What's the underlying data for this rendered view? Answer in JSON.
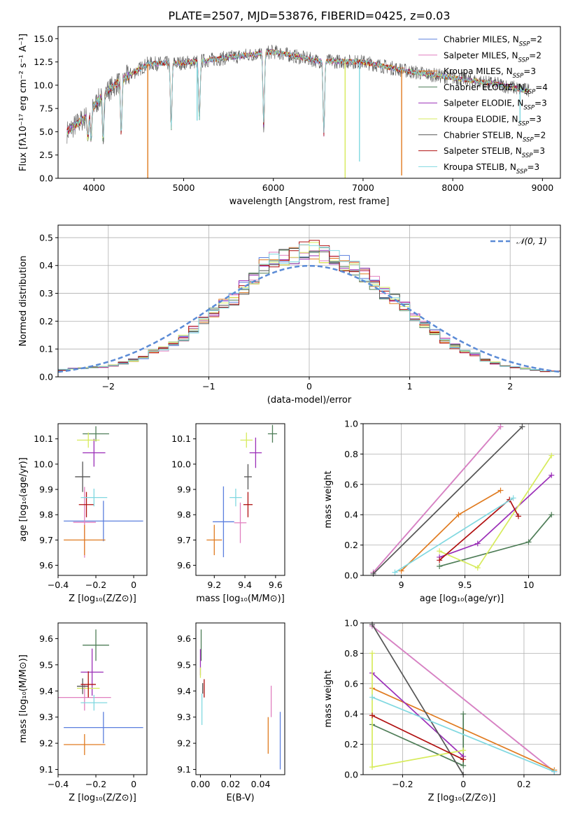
{
  "figure": {
    "title": "PLATE=2507, MJD=53876, FIBERID=0425, z=0.03"
  },
  "series_colors": [
    "#5b7fde",
    "#e07fbf",
    "#e07b20",
    "#4e7d57",
    "#9b2fb8",
    "#d7eb5c",
    "#555555",
    "#b01010",
    "#80d8e0"
  ],
  "chart_data": [
    {
      "id": "spectrum",
      "type": "line",
      "title": "PLATE=2507, MJD=53876, FIBERID=0425, z=0.03",
      "xlabel": "wavelength [Angstrom, rest frame]",
      "ylabel": "Flux [fλ10⁻¹⁷ erg cm⁻² s⁻¹ A⁻¹]",
      "xlim": [
        3600,
        9200
      ],
      "ylim": [
        0,
        16.3
      ],
      "xticks": [
        4000,
        5000,
        6000,
        7000,
        8000,
        9000
      ],
      "yticks": [
        0.0,
        2.5,
        5.0,
        7.5,
        10.0,
        12.5,
        15.0
      ],
      "grid": false,
      "legend_position": "upper-right",
      "series": [
        {
          "name": "Chabrier MILES, N_SSP=2",
          "base": "Chabrier MILES, N",
          "sub": "SSP",
          "tail": "=2"
        },
        {
          "name": "Salpeter MILES, N_SSP=2",
          "base": "Salpeter MILES, N",
          "sub": "SSP",
          "tail": "=2"
        },
        {
          "name": "Kroupa MILES, N_SSP=3",
          "base": "Kroupa MILES, N",
          "sub": "SSP",
          "tail": "=3"
        },
        {
          "name": "Chabrier ELODIE, N_SSP=4",
          "base": "Chabrier ELODIE, N",
          "sub": "SSP",
          "tail": "=4"
        },
        {
          "name": "Salpeter ELODIE, N_SSP=3",
          "base": "Salpeter ELODIE, N",
          "sub": "SSP",
          "tail": "=3"
        },
        {
          "name": "Kroupa ELODIE, N_SSP=3",
          "base": "Kroupa ELODIE, N",
          "sub": "SSP",
          "tail": "=3"
        },
        {
          "name": "Chabrier STELIB, N_SSP=2",
          "base": "Chabrier STELIB, N",
          "sub": "SSP",
          "tail": "=2"
        },
        {
          "name": "Salpeter STELIB, N_SSP=3",
          "base": "Salpeter STELIB, N",
          "sub": "SSP",
          "tail": "=3"
        },
        {
          "name": "Kroupa STELIB, N_SSP=3",
          "base": "Kroupa STELIB, N",
          "sub": "SSP",
          "tail": "=3"
        }
      ],
      "continuum": [
        [
          3700,
          5.0
        ],
        [
          3900,
          6.5
        ],
        [
          4100,
          9.0
        ],
        [
          4300,
          10.5
        ],
        [
          4600,
          12.3
        ],
        [
          5000,
          12.4
        ],
        [
          5200,
          12.6
        ],
        [
          5600,
          13.1
        ],
        [
          6000,
          13.6
        ],
        [
          6500,
          12.6
        ],
        [
          7000,
          12.5
        ],
        [
          7500,
          11.5
        ],
        [
          8000,
          10.8
        ],
        [
          8500,
          10.1
        ],
        [
          8800,
          9.5
        ]
      ],
      "absorption_features": [
        [
          3933,
          3.2
        ],
        [
          3968,
          2.9
        ],
        [
          4102,
          2.0
        ],
        [
          4304,
          2.3
        ],
        [
          4861,
          2.4
        ],
        [
          5175,
          3.5
        ],
        [
          5893,
          2.1
        ],
        [
          6563,
          1.4
        ]
      ],
      "spikes": [
        [
          4600,
          0.0
        ],
        [
          5150,
          6.2
        ],
        [
          6800,
          0.0
        ],
        [
          6960,
          1.8
        ],
        [
          7430,
          0.3
        ],
        [
          8750,
          6.0
        ]
      ]
    },
    {
      "id": "residuals",
      "type": "bar",
      "xlabel": "(data-model)/error",
      "ylabel": "Normed distribution",
      "xlim": [
        -2.5,
        2.5
      ],
      "ylim": [
        0,
        0.545
      ],
      "xticks": [
        -2,
        -1,
        0,
        1,
        2
      ],
      "yticks": [
        0.0,
        0.1,
        0.2,
        0.3,
        0.4,
        0.5
      ],
      "grid": true,
      "legend_position": "upper-right",
      "legend_label": "𝒩(0, 1)",
      "bin_edges": [
        -2.5,
        -2.4,
        -2.3,
        -2.2,
        -2.1,
        -2.0,
        -1.9,
        -1.8,
        -1.7,
        -1.6,
        -1.5,
        -1.4,
        -1.3,
        -1.2,
        -1.1,
        -1.0,
        -0.9,
        -0.8,
        -0.7,
        -0.6,
        -0.5,
        -0.4,
        -0.3,
        -0.2,
        -0.1,
        0.0,
        0.1,
        0.2,
        0.3,
        0.4,
        0.5,
        0.6,
        0.7,
        0.8,
        0.9,
        1.0,
        1.1,
        1.2,
        1.3,
        1.4,
        1.5,
        1.6,
        1.7,
        1.8,
        1.9,
        2.0,
        2.1,
        2.2,
        2.3,
        2.4,
        2.5
      ],
      "histogram_base": [
        0.025,
        0.03,
        0.03,
        0.035,
        0.035,
        0.04,
        0.05,
        0.06,
        0.07,
        0.09,
        0.1,
        0.12,
        0.14,
        0.17,
        0.2,
        0.23,
        0.26,
        0.28,
        0.32,
        0.36,
        0.4,
        0.42,
        0.43,
        0.44,
        0.45,
        0.46,
        0.44,
        0.43,
        0.41,
        0.39,
        0.37,
        0.34,
        0.3,
        0.28,
        0.25,
        0.22,
        0.19,
        0.16,
        0.13,
        0.11,
        0.09,
        0.08,
        0.06,
        0.05,
        0.04,
        0.035,
        0.03,
        0.025,
        0.02,
        0.02
      ],
      "normal_curve": {
        "mu": 0,
        "sigma": 1
      }
    },
    {
      "id": "age_vs_Z",
      "type": "scatter",
      "xlabel": "Z [log₁₀(Z/Z⊙)]",
      "ylabel": "age  [log₁₀(age/yr)]",
      "xlim": [
        -0.4,
        0.07
      ],
      "ylim": [
        9.56,
        10.16
      ],
      "xticks": [
        -0.4,
        -0.2,
        0.0
      ],
      "yticks": [
        9.6,
        9.7,
        9.8,
        9.9,
        10.0,
        10.1
      ],
      "grid": false,
      "points": [
        {
          "x": -0.16,
          "y": 9.775,
          "xerr": 0.21,
          "yerr": 0.08
        },
        {
          "x": -0.26,
          "y": 9.77,
          "xerr": 0.06,
          "yerr": 0.14
        },
        {
          "x": -0.26,
          "y": 9.7,
          "xerr": 0.11,
          "yerr": 0.06
        },
        {
          "x": -0.2,
          "y": 10.12,
          "xerr": 0.07,
          "yerr": 0.03
        },
        {
          "x": -0.21,
          "y": 10.045,
          "xerr": 0.06,
          "yerr": 0.055
        },
        {
          "x": -0.24,
          "y": 10.095,
          "xerr": 0.06,
          "yerr": 0.03
        },
        {
          "x": -0.27,
          "y": 9.95,
          "xerr": 0.04,
          "yerr": 0.06
        },
        {
          "x": -0.25,
          "y": 9.84,
          "xerr": 0.04,
          "yerr": 0.05
        },
        {
          "x": -0.21,
          "y": 9.868,
          "xerr": 0.07,
          "yerr": 0.035
        }
      ]
    },
    {
      "id": "age_vs_mass",
      "type": "scatter",
      "xlabel": "mass [log₁₀(M/M⊙)]",
      "ylabel": "",
      "xlim": [
        9.08,
        9.66
      ],
      "ylim": [
        9.56,
        10.16
      ],
      "xticks": [
        9.2,
        9.4,
        9.6
      ],
      "yticks": [
        9.6,
        9.7,
        9.8,
        9.9,
        10.0,
        10.1
      ],
      "grid": false,
      "points": [
        {
          "x": 9.26,
          "y": 9.772,
          "xerr": 0.07,
          "yerr": 0.14
        },
        {
          "x": 9.37,
          "y": 9.768,
          "xerr": 0.04,
          "yerr": 0.08
        },
        {
          "x": 9.2,
          "y": 9.7,
          "xerr": 0.05,
          "yerr": 0.06
        },
        {
          "x": 9.58,
          "y": 10.12,
          "xerr": 0.03,
          "yerr": 0.035
        },
        {
          "x": 9.47,
          "y": 10.045,
          "xerr": 0.04,
          "yerr": 0.06
        },
        {
          "x": 9.41,
          "y": 10.095,
          "xerr": 0.04,
          "yerr": 0.03
        },
        {
          "x": 9.42,
          "y": 9.95,
          "xerr": 0.025,
          "yerr": 0.05
        },
        {
          "x": 9.42,
          "y": 9.84,
          "xerr": 0.03,
          "yerr": 0.05
        },
        {
          "x": 9.34,
          "y": 9.868,
          "xerr": 0.04,
          "yerr": 0.035
        }
      ]
    },
    {
      "id": "weight_vs_age",
      "type": "line",
      "xlabel": "age  [log₁₀(age/yr)]",
      "ylabel": "mass weight",
      "xlim": [
        8.7,
        10.25
      ],
      "ylim": [
        0,
        1.0
      ],
      "xticks": [
        9.0,
        9.5,
        10.0
      ],
      "yticks": [
        0.0,
        0.2,
        0.4,
        0.6,
        0.8,
        1.0
      ],
      "grid": true,
      "series": [
        {
          "points": [
            [
              8.78,
              0.02
            ],
            [
              9.78,
              0.98
            ]
          ]
        },
        {
          "points": [
            [
              8.78,
              0.02
            ],
            [
              9.78,
              0.98
            ]
          ]
        },
        {
          "points": [
            [
              9.0,
              0.03
            ],
            [
              9.45,
              0.4
            ],
            [
              9.78,
              0.56
            ]
          ]
        },
        {
          "points": [
            [
              9.3,
              0.06
            ],
            [
              10.0,
              0.22
            ],
            [
              10.18,
              0.4
            ]
          ]
        },
        {
          "points": [
            [
              9.3,
              0.12
            ],
            [
              9.6,
              0.21
            ],
            [
              10.18,
              0.66
            ]
          ]
        },
        {
          "points": [
            [
              9.3,
              0.16
            ],
            [
              9.6,
              0.05
            ],
            [
              10.18,
              0.79
            ]
          ]
        },
        {
          "points": [
            [
              8.78,
              0.01
            ],
            [
              9.95,
              0.98
            ]
          ]
        },
        {
          "points": [
            [
              9.3,
              0.1
            ],
            [
              9.85,
              0.5
            ],
            [
              9.92,
              0.39
            ]
          ]
        },
        {
          "points": [
            [
              8.95,
              0.02
            ],
            [
              9.88,
              0.51
            ]
          ]
        }
      ]
    },
    {
      "id": "mass_vs_Z",
      "type": "scatter",
      "xlabel": "Z [log₁₀(Z/Z⊙)]",
      "ylabel": "mass [log₁₀(M/M⊙)]",
      "xlim": [
        -0.4,
        0.07
      ],
      "ylim": [
        9.08,
        9.66
      ],
      "xticks": [
        -0.4,
        -0.2,
        0.0
      ],
      "yticks": [
        9.1,
        9.2,
        9.3,
        9.4,
        9.5,
        9.6
      ],
      "grid": false,
      "points": [
        {
          "x": -0.16,
          "y": 9.26,
          "xerr": 0.21,
          "yerr": 0.06
        },
        {
          "x": -0.26,
          "y": 9.375,
          "xerr": 0.14,
          "yerr": 0.05
        },
        {
          "x": -0.26,
          "y": 9.195,
          "xerr": 0.11,
          "yerr": 0.04
        },
        {
          "x": -0.2,
          "y": 9.575,
          "xerr": 0.07,
          "yerr": 0.06
        },
        {
          "x": -0.22,
          "y": 9.472,
          "xerr": 0.06,
          "yerr": 0.09
        },
        {
          "x": -0.24,
          "y": 9.41,
          "xerr": 0.06,
          "yerr": 0.03
        },
        {
          "x": -0.27,
          "y": 9.418,
          "xerr": 0.03,
          "yerr": 0.03
        },
        {
          "x": -0.24,
          "y": 9.425,
          "xerr": 0.04,
          "yerr": 0.05
        },
        {
          "x": -0.21,
          "y": 9.355,
          "xerr": 0.07,
          "yerr": 0.03
        }
      ]
    },
    {
      "id": "mass_vs_ebv",
      "type": "scatter",
      "xlabel": "E(B-V)",
      "ylabel": "",
      "xlim": [
        -0.003,
        0.056
      ],
      "ylim": [
        9.08,
        9.66
      ],
      "xticks": [
        0.0,
        0.02,
        0.04
      ],
      "xticklabels": [
        "0.00",
        "0.02",
        "0.04"
      ],
      "yticks": [
        9.1,
        9.2,
        9.3,
        9.4,
        9.5,
        9.6
      ],
      "grid": false,
      "points": [
        {
          "x": 0.053,
          "y": 9.21,
          "xerr": 0.0,
          "yerr": 0.11
        },
        {
          "x": 0.047,
          "y": 9.36,
          "xerr": 0.0,
          "yerr": 0.06
        },
        {
          "x": 0.045,
          "y": 9.23,
          "xerr": 0.0,
          "yerr": 0.07
        },
        {
          "x": 0.0005,
          "y": 9.575,
          "xerr": 0.0,
          "yerr": 0.06
        },
        {
          "x": 0.0,
          "y": 9.51,
          "xerr": 0.0,
          "yerr": 0.05
        },
        {
          "x": 0.0,
          "y": 9.47,
          "xerr": 0.0,
          "yerr": 0.02
        },
        {
          "x": 0.0015,
          "y": 9.41,
          "xerr": 0.0,
          "yerr": 0.02
        },
        {
          "x": 0.0025,
          "y": 9.41,
          "xerr": 0.0,
          "yerr": 0.035
        },
        {
          "x": 0.001,
          "y": 9.33,
          "xerr": 0.0,
          "yerr": 0.06
        }
      ]
    },
    {
      "id": "weight_vs_Z",
      "type": "line",
      "xlabel": "Z [log₁₀(Z/Z⊙)]",
      "ylabel": "mass weight",
      "xlim": [
        -0.33,
        0.32
      ],
      "ylim": [
        0,
        1.0
      ],
      "xticks": [
        -0.2,
        0.0,
        0.2
      ],
      "yticks": [
        0.0,
        0.2,
        0.4,
        0.6,
        0.8,
        1.0
      ],
      "grid": true,
      "series": [
        {
          "points": [
            [
              -0.3,
              0.98
            ],
            [
              0.3,
              0.02
            ]
          ]
        },
        {
          "points": [
            [
              -0.3,
              0.98
            ],
            [
              0.3,
              0.02
            ]
          ]
        },
        {
          "points": [
            [
              -0.3,
              0.57
            ],
            [
              0.3,
              0.03
            ]
          ]
        },
        {
          "points": [
            [
              -0.3,
              0.33
            ],
            [
              0.0,
              0.06
            ],
            [
              0.0,
              0.4
            ]
          ]
        },
        {
          "points": [
            [
              -0.3,
              0.67
            ],
            [
              0.0,
              0.12
            ]
          ]
        },
        {
          "points": [
            [
              -0.3,
              0.8
            ],
            [
              -0.3,
              0.05
            ],
            [
              0.0,
              0.16
            ]
          ]
        },
        {
          "points": [
            [
              -0.3,
              0.99
            ],
            [
              0.0,
              0.0
            ]
          ]
        },
        {
          "points": [
            [
              -0.3,
              0.39
            ],
            [
              0.0,
              0.1
            ]
          ]
        },
        {
          "points": [
            [
              -0.3,
              0.51
            ],
            [
              0.3,
              0.02
            ]
          ]
        }
      ]
    }
  ]
}
